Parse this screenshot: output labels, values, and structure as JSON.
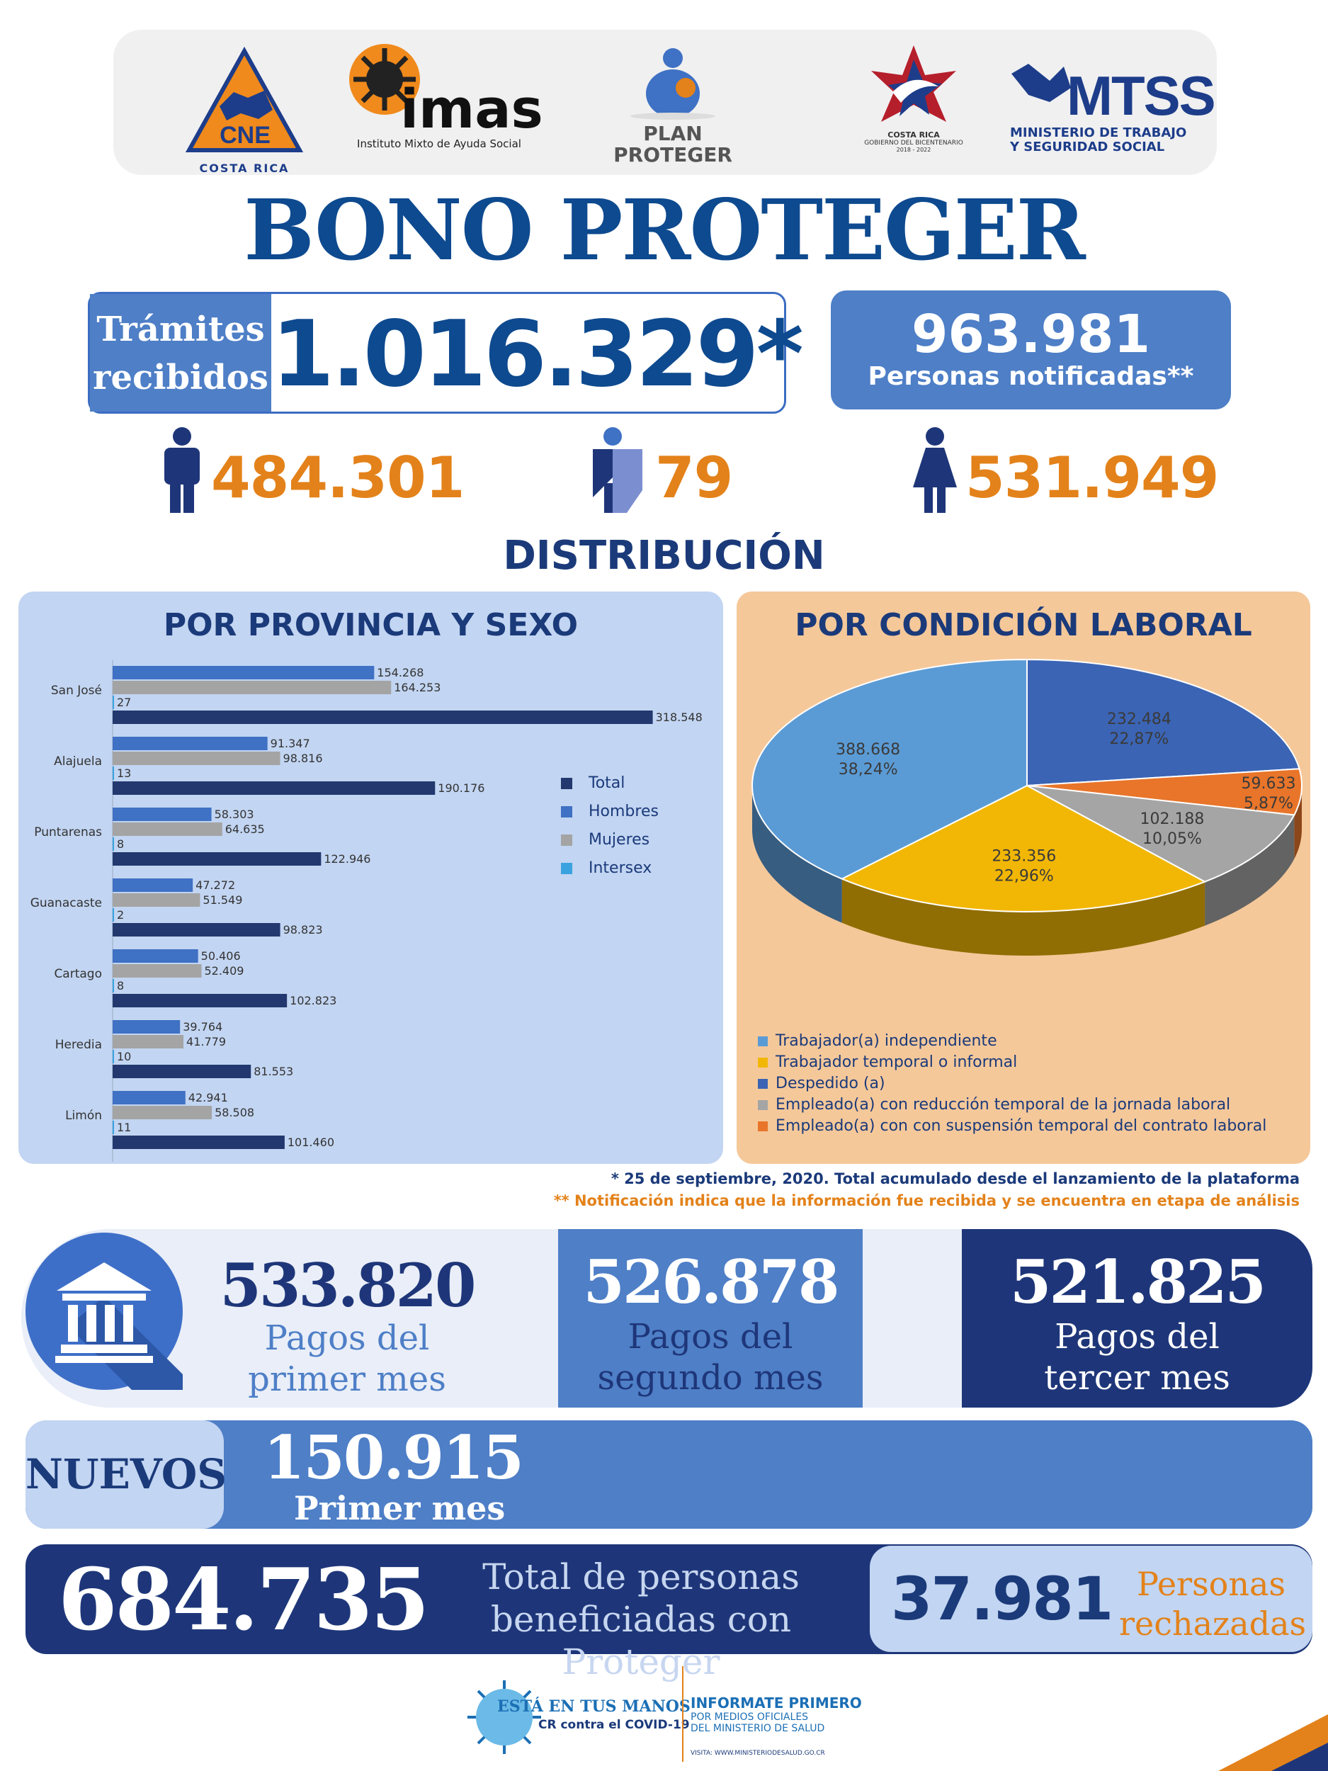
{
  "logos": {
    "cne": {
      "acronym": "CNE",
      "caption": "COSTA RICA"
    },
    "imas": {
      "name": "imas",
      "caption": "Instituto Mixto de Ayuda Social"
    },
    "plan": {
      "line1": "PLAN",
      "line2": "PROTEGER"
    },
    "gobierno": {
      "line1": "COSTA RICA",
      "line2": "GOBIERNO DEL BICENTENARIO",
      "line3": "2018 - 2022"
    },
    "mtss": {
      "acronym": "MTSS",
      "line1": "MINISTERIO DE TRABAJO",
      "line2": "Y SEGURIDAD SOCIAL"
    }
  },
  "title": "BONO PROTEGER",
  "tramites": {
    "label_line1": "Trámites",
    "label_line2": "recibidos",
    "value": "1.016.329*"
  },
  "notificadas": {
    "value": "963.981",
    "label": "Personas notificadas**"
  },
  "gender": {
    "hombres": "484.301",
    "intersex": "79",
    "mujeres": "531.949"
  },
  "distribucion_title": "DISTRIBUCIÓN",
  "provincia_panel": {
    "title": "POR PROVINCIA Y SEXO"
  },
  "condicion_panel": {
    "title": "POR CONDICIÓN LABORAL"
  },
  "colors": {
    "total": "#22386e",
    "hombres": "#3f71c4",
    "mujeres": "#a4a4a4",
    "intersex": "#3aa3df",
    "independiente": "#5b9bd5",
    "temporal": "#f2b705",
    "despedido": "#3b64b4",
    "reduccion": "#a5a5a5",
    "suspension": "#e8752a"
  },
  "chart_data": [
    {
      "type": "bar",
      "orientation": "horizontal",
      "categories": [
        "San José",
        "Alajuela",
        "Puntarenas",
        "Guanacaste",
        "Cartago",
        "Heredia",
        "Limón"
      ],
      "series": [
        {
          "name": "Hombres",
          "values": [
            154268,
            91347,
            58303,
            47272,
            50406,
            39764,
            42941
          ],
          "labels": [
            "154.268",
            "91.347",
            "58.303",
            "47.272",
            "50.406",
            "39.764",
            "42.941"
          ]
        },
        {
          "name": "Mujeres",
          "values": [
            164253,
            98816,
            64635,
            51549,
            52409,
            41779,
            58508
          ],
          "labels": [
            "164.253",
            "98.816",
            "64.635",
            "51.549",
            "52.409",
            "41.779",
            "58.508"
          ]
        },
        {
          "name": "Intersex",
          "values": [
            27,
            13,
            8,
            2,
            8,
            10,
            11
          ],
          "labels": [
            "27",
            "13",
            "8",
            "2",
            "8",
            "10",
            "11"
          ]
        },
        {
          "name": "Total",
          "values": [
            318548,
            190176,
            122946,
            98823,
            102823,
            81553,
            101460
          ],
          "labels": [
            "318.548",
            "190.176",
            "122.946",
            "98.823",
            "102.823",
            "81.553",
            "101.460"
          ]
        }
      ],
      "legend": [
        "Total",
        "Hombres",
        "Mujeres",
        "Intersex"
      ],
      "xlim": [
        0,
        330000
      ]
    },
    {
      "type": "pie",
      "slices": [
        {
          "name": "Despedido (a)",
          "value": 232484,
          "label": "232.484",
          "pct": "22,87%"
        },
        {
          "name": "Empleado(a) con con suspensión temporal del contrato laboral",
          "value": 59633,
          "label": "59.633",
          "pct": "5,87%"
        },
        {
          "name": "Empleado(a) con reducción temporal de la jornada laboral",
          "value": 102188,
          "label": "102.188",
          "pct": "10,05%"
        },
        {
          "name": "Trabajador temporal o informal",
          "value": 233356,
          "label": "233.356",
          "pct": "22,96%"
        },
        {
          "name": "Trabajador(a) independiente",
          "value": 388668,
          "label": "388.668",
          "pct": "38,24%"
        }
      ],
      "legend": [
        "Trabajador(a) independiente",
        "Trabajador temporal o informal",
        "Despedido (a)",
        "Empleado(a) con reducción temporal de la jornada laboral",
        "Empleado(a) con con suspensión temporal del contrato laboral"
      ]
    }
  ],
  "footnotes": {
    "one": "* 25 de septiembre, 2020. Total acumulado desde el lanzamiento de la plataforma",
    "two": "** Notificación indica que la información fue recibida y se encuentra en etapa de análisis"
  },
  "pagos": {
    "primer": {
      "value": "533.820",
      "line1": "Pagos del",
      "line2": "primer mes"
    },
    "segundo": {
      "value": "526.878",
      "line1": "Pagos del",
      "line2": "segundo mes"
    },
    "tercer": {
      "value": "521.825",
      "line1": "Pagos del",
      "line2": "tercer mes"
    }
  },
  "nuevos": {
    "tag": "NUEVOS",
    "value": "150.915",
    "label": "Primer mes"
  },
  "total": {
    "value": "684.735",
    "line1": "Total de personas",
    "line2": "beneficiadas con Proteger"
  },
  "rechazadas": {
    "value": "37.981",
    "line1": "Personas",
    "line2": "rechazadas"
  },
  "footer": {
    "line1": "ESTÁ EN TUS MANOS",
    "line2": "CR contra el COVID-19",
    "info1": "INFORMATE PRIMERO",
    "info2": "POR MEDIOS OFICIALES",
    "info3": "DEL MINISTERIO DE SALUD",
    "visit": "VISITA: WWW.MINISTERIODESALUD.GO.CR"
  }
}
